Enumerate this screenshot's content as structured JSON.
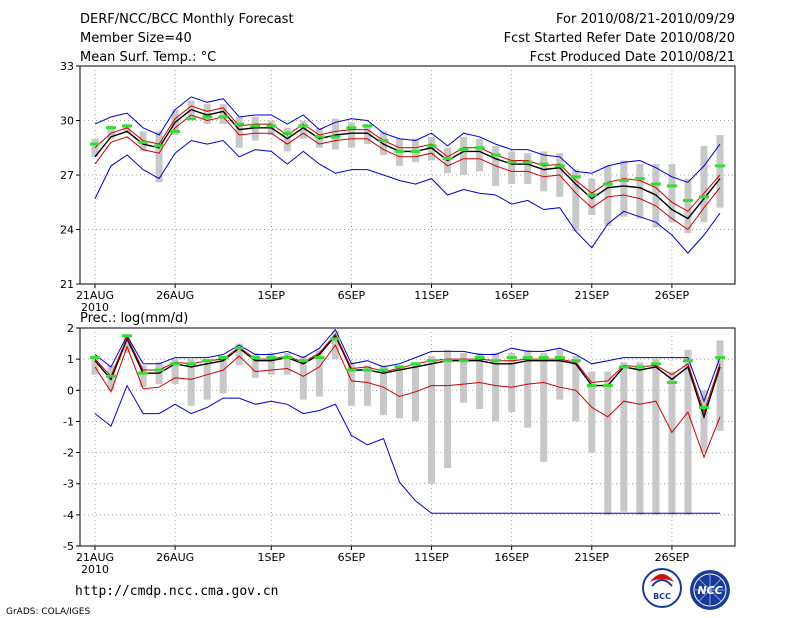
{
  "header": {
    "title": "DERF/NCC/BCC Monthly Forecast",
    "member_size": "Member Size=40",
    "variable": "Mean Surf. Temp.: °C",
    "forecast_period": "For 2010/08/21-2010/09/29",
    "start_date": "Fcst Started Refer Date 2010/08/20",
    "produced_date": "Fcst Produced Date 2010/08/21"
  },
  "footer": {
    "url": "http://cmdp.ncc.cma.gov.cn",
    "credit": "GrADS: COLA/IGES",
    "logo_bcc": "BCC",
    "logo_ncc": "NCC"
  },
  "colors": {
    "mean": "#000000",
    "upper": "#0000cc",
    "lower": "#cc0000",
    "inner": "#cc0000",
    "median": "#33dd33",
    "spread": "#c8c8c8",
    "grid": "#888888"
  },
  "chart_data": [
    {
      "type": "line",
      "title": "Mean Surf. Temp.: °C",
      "xlabel": "",
      "ylabel": "",
      "ylim": [
        21,
        33
      ],
      "yticks": [
        21,
        24,
        27,
        30,
        33
      ],
      "x_tick_labels": [
        "21AUG",
        "26AUG",
        "1SEP",
        "6SEP",
        "11SEP",
        "16SEP",
        "21SEP",
        "26SEP"
      ],
      "x_tick_index": [
        0,
        5,
        11,
        16,
        21,
        26,
        31,
        36
      ],
      "x_sublabel": "2010",
      "grid": true,
      "series": [
        {
          "name": "ensemble mean",
          "values": [
            28.0,
            29.1,
            29.4,
            28.7,
            28.5,
            29.9,
            30.6,
            30.3,
            30.5,
            29.5,
            29.6,
            29.6,
            29.0,
            29.6,
            29.0,
            29.2,
            29.3,
            29.3,
            28.7,
            28.3,
            28.3,
            28.5,
            27.8,
            28.3,
            28.3,
            27.9,
            27.6,
            27.6,
            27.3,
            27.4,
            26.5,
            25.7,
            26.3,
            26.4,
            26.3,
            25.9,
            25.1,
            24.6,
            25.7,
            26.8
          ]
        },
        {
          "name": "upper",
          "values": [
            29.8,
            30.2,
            30.4,
            29.6,
            29.2,
            30.6,
            31.3,
            31.0,
            31.2,
            30.2,
            30.3,
            30.3,
            29.8,
            30.3,
            29.5,
            29.9,
            30.1,
            30.0,
            29.3,
            29.0,
            28.9,
            29.3,
            28.6,
            29.3,
            29.1,
            28.7,
            28.4,
            28.4,
            28.1,
            28.0,
            27.2,
            27.1,
            27.5,
            27.7,
            27.8,
            27.4,
            26.9,
            26.6,
            27.5,
            28.7
          ]
        },
        {
          "name": "lower",
          "values": [
            25.7,
            27.5,
            28.1,
            27.3,
            26.8,
            28.2,
            28.9,
            28.7,
            28.9,
            28.0,
            28.4,
            28.3,
            27.6,
            28.3,
            27.6,
            27.1,
            27.3,
            27.3,
            27.0,
            26.7,
            26.5,
            26.8,
            25.9,
            26.2,
            26.0,
            25.9,
            25.4,
            25.6,
            25.1,
            25.2,
            23.9,
            23.0,
            24.3,
            25.0,
            24.7,
            24.4,
            23.7,
            22.7,
            23.7,
            24.9
          ]
        },
        {
          "name": "inner upper",
          "values": [
            28.5,
            29.3,
            29.6,
            28.9,
            28.7,
            30.1,
            30.8,
            30.5,
            30.7,
            29.7,
            29.8,
            29.8,
            29.2,
            29.8,
            29.2,
            29.4,
            29.5,
            29.5,
            28.9,
            28.5,
            28.5,
            28.7,
            28.0,
            28.5,
            28.5,
            28.1,
            27.8,
            27.8,
            27.5,
            27.6,
            26.7,
            26.0,
            26.6,
            26.8,
            26.7,
            26.3,
            25.5,
            25.0,
            26.0,
            27.0
          ]
        },
        {
          "name": "inner lower",
          "values": [
            27.6,
            28.8,
            29.1,
            28.4,
            28.2,
            29.6,
            30.3,
            30.0,
            30.2,
            29.2,
            29.3,
            29.3,
            28.7,
            29.3,
            28.7,
            28.9,
            29.0,
            29.0,
            28.4,
            28.0,
            28.0,
            28.2,
            27.5,
            27.9,
            27.9,
            27.5,
            27.2,
            27.2,
            26.9,
            27.0,
            26.0,
            25.2,
            25.8,
            25.9,
            25.7,
            25.3,
            24.6,
            24.0,
            25.2,
            26.3
          ]
        },
        {
          "name": "median",
          "values": [
            28.7,
            29.6,
            29.7,
            28.8,
            28.6,
            29.4,
            30.1,
            30.2,
            30.2,
            29.8,
            29.7,
            29.7,
            29.3,
            29.7,
            29.1,
            29.1,
            29.6,
            29.7,
            28.9,
            28.3,
            28.3,
            28.6,
            27.9,
            28.4,
            28.5,
            28.1,
            27.7,
            27.7,
            27.6,
            27.5,
            26.9,
            25.9,
            26.5,
            26.7,
            26.8,
            26.5,
            26.4,
            25.6,
            25.8,
            27.5
          ]
        }
      ],
      "spread_range": [
        [
          28.0,
          29.0
        ],
        [
          29.0,
          29.7
        ],
        [
          29.3,
          29.8
        ],
        [
          28.3,
          29.4
        ],
        [
          26.6,
          29.4
        ],
        [
          29.2,
          30.6
        ],
        [
          30.2,
          31.1
        ],
        [
          29.8,
          30.9
        ],
        [
          29.8,
          30.9
        ],
        [
          28.5,
          30.2
        ],
        [
          28.9,
          30.2
        ],
        [
          29.2,
          30.0
        ],
        [
          28.3,
          29.6
        ],
        [
          29.0,
          30.0
        ],
        [
          28.5,
          29.6
        ],
        [
          28.4,
          30.1
        ],
        [
          28.5,
          29.9
        ],
        [
          28.7,
          29.8
        ],
        [
          28.1,
          29.4
        ],
        [
          27.5,
          29.0
        ],
        [
          27.7,
          29.0
        ],
        [
          27.8,
          29.1
        ],
        [
          27.1,
          28.5
        ],
        [
          27.0,
          29.1
        ],
        [
          27.2,
          29.0
        ],
        [
          26.4,
          28.6
        ],
        [
          26.5,
          28.3
        ],
        [
          26.5,
          28.2
        ],
        [
          26.1,
          28.3
        ],
        [
          25.8,
          28.2
        ],
        [
          23.9,
          27.3
        ],
        [
          24.8,
          26.8
        ],
        [
          24.2,
          27.5
        ],
        [
          24.7,
          27.8
        ],
        [
          24.6,
          27.6
        ],
        [
          24.1,
          27.6
        ],
        [
          24.4,
          27.6
        ],
        [
          23.8,
          26.8
        ],
        [
          24.4,
          28.6
        ],
        [
          25.2,
          29.2
        ]
      ]
    },
    {
      "type": "line",
      "title": "Prec.: log(mm/d)",
      "xlabel": "",
      "ylabel": "",
      "ylim": [
        -5,
        2
      ],
      "yticks": [
        -5,
        -4,
        -3,
        -2,
        -1,
        0,
        1,
        2
      ],
      "x_tick_labels": [
        "21AUG",
        "26AUG",
        "1SEP",
        "6SEP",
        "11SEP",
        "16SEP",
        "21SEP",
        "26SEP"
      ],
      "x_tick_index": [
        0,
        5,
        11,
        16,
        21,
        26,
        31,
        36
      ],
      "x_sublabel": "2010",
      "grid": true,
      "series": [
        {
          "name": "ensemble mean",
          "values": [
            0.95,
            0.35,
            1.65,
            0.55,
            0.55,
            0.85,
            0.75,
            0.85,
            0.95,
            1.35,
            0.95,
            0.95,
            1.05,
            0.85,
            1.15,
            1.75,
            0.65,
            0.65,
            0.55,
            0.65,
            0.75,
            0.85,
            0.95,
            0.95,
            0.95,
            0.85,
            0.85,
            0.95,
            0.95,
            0.95,
            0.85,
            0.15,
            0.15,
            0.75,
            0.65,
            0.75,
            0.35,
            0.75,
            -0.85,
            0.75
          ]
        },
        {
          "name": "upper",
          "values": [
            1.15,
            0.75,
            1.75,
            0.85,
            0.85,
            1.05,
            1.05,
            1.05,
            1.15,
            1.45,
            1.15,
            1.15,
            1.25,
            1.05,
            1.35,
            1.95,
            0.85,
            0.95,
            0.75,
            0.85,
            1.05,
            1.25,
            1.25,
            1.25,
            1.15,
            1.15,
            1.35,
            1.25,
            1.25,
            1.35,
            1.15,
            0.85,
            0.95,
            1.05,
            1.05,
            1.05,
            1.05,
            1.05,
            -0.35,
            1.05
          ]
        },
        {
          "name": "lower",
          "values": [
            -0.75,
            -1.15,
            0.15,
            -0.75,
            -0.75,
            -0.45,
            -0.75,
            -0.55,
            -0.25,
            -0.25,
            -0.45,
            -0.35,
            -0.45,
            -0.75,
            -0.65,
            -0.45,
            -1.45,
            -1.75,
            -1.55,
            -2.95,
            -3.55,
            -3.95,
            -3.95,
            -3.95,
            -3.95,
            -3.95,
            -3.95,
            -3.95,
            -3.95,
            -3.95,
            -3.95,
            -3.95,
            -3.95,
            -3.95,
            -3.95,
            -3.95,
            -3.95,
            -3.95,
            -3.95,
            -3.95
          ]
        },
        {
          "name": "inner upper",
          "values": [
            1.0,
            0.45,
            1.7,
            0.65,
            0.65,
            0.9,
            0.85,
            0.95,
            1.0,
            1.38,
            1.0,
            1.0,
            1.1,
            0.9,
            1.2,
            1.8,
            0.7,
            0.75,
            0.6,
            0.7,
            0.85,
            0.95,
            1.0,
            1.0,
            1.0,
            0.95,
            0.95,
            1.0,
            1.0,
            1.0,
            0.9,
            0.25,
            0.3,
            0.8,
            0.75,
            0.8,
            0.5,
            0.85,
            -0.7,
            0.85
          ]
        },
        {
          "name": "inner lower",
          "values": [
            0.75,
            -0.05,
            1.4,
            0.05,
            0.1,
            0.4,
            0.35,
            0.5,
            0.65,
            1.1,
            0.6,
            0.65,
            0.7,
            0.45,
            0.75,
            1.45,
            0.3,
            0.25,
            0.1,
            -0.2,
            -0.05,
            0.15,
            0.15,
            0.2,
            0.25,
            0.15,
            0.1,
            0.2,
            0.25,
            0.1,
            0.0,
            -0.55,
            -0.85,
            -0.35,
            -0.45,
            -0.35,
            -1.35,
            -0.7,
            -2.15,
            -0.85
          ]
        },
        {
          "name": "median",
          "values": [
            1.05,
            0.45,
            1.75,
            0.55,
            0.65,
            0.85,
            0.85,
            0.95,
            1.05,
            1.35,
            1.05,
            1.05,
            1.05,
            0.95,
            1.05,
            1.65,
            0.65,
            0.65,
            0.65,
            0.75,
            0.85,
            0.95,
            0.95,
            0.95,
            1.05,
            0.95,
            1.05,
            1.05,
            1.05,
            1.05,
            0.95,
            0.15,
            0.15,
            0.75,
            0.75,
            0.85,
            0.25,
            0.95,
            -0.55,
            1.05
          ]
        }
      ],
      "spread_range": [
        [
          0.5,
          1.1
        ],
        [
          0.0,
          0.8
        ],
        [
          1.2,
          1.8
        ],
        [
          0.1,
          0.8
        ],
        [
          0.2,
          0.9
        ],
        [
          0.2,
          1.0
        ],
        [
          -0.5,
          1.0
        ],
        [
          -0.3,
          1.0
        ],
        [
          -0.1,
          1.1
        ],
        [
          0.8,
          1.5
        ],
        [
          0.4,
          1.2
        ],
        [
          0.5,
          1.2
        ],
        [
          0.5,
          1.2
        ],
        [
          -0.3,
          1.1
        ],
        [
          -0.2,
          1.3
        ],
        [
          1.0,
          1.9
        ],
        [
          -0.5,
          0.9
        ],
        [
          -0.5,
          0.8
        ],
        [
          -0.8,
          0.8
        ],
        [
          -0.9,
          0.8
        ],
        [
          -1.0,
          0.9
        ],
        [
          -3.0,
          1.1
        ],
        [
          -2.5,
          1.3
        ],
        [
          -0.4,
          1.2
        ],
        [
          -0.6,
          1.2
        ],
        [
          -1.0,
          1.2
        ],
        [
          -0.7,
          1.2
        ],
        [
          -1.2,
          1.3
        ],
        [
          -2.3,
          1.2
        ],
        [
          -0.3,
          1.3
        ],
        [
          -1.0,
          1.1
        ],
        [
          -2.0,
          0.6
        ],
        [
          -4.0,
          0.6
        ],
        [
          -3.9,
          0.9
        ],
        [
          -4.0,
          0.9
        ],
        [
          -4.0,
          1.0
        ],
        [
          -4.0,
          0.6
        ],
        [
          -4.0,
          1.3
        ],
        [
          -2.0,
          0.0
        ],
        [
          -1.3,
          1.6
        ]
      ]
    }
  ]
}
